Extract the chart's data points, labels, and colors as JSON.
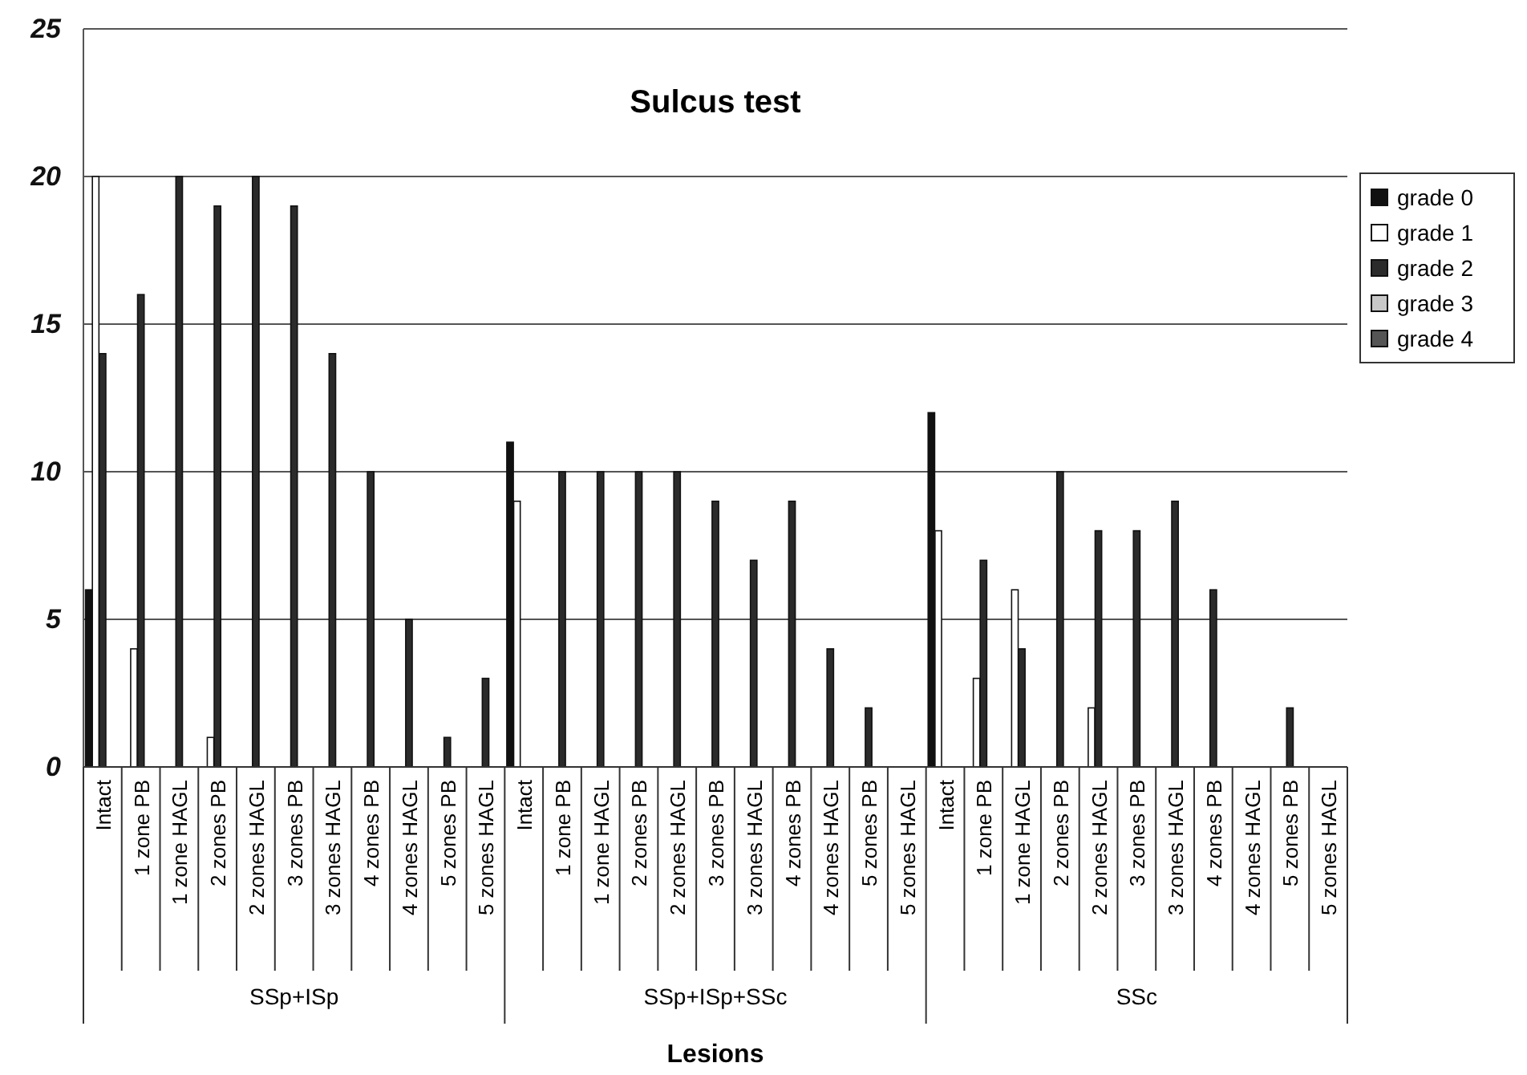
{
  "chart_data": {
    "type": "bar",
    "title": "Sulcus test",
    "xlabel": "Lesions",
    "categories": [
      "Intact",
      "1 zone PB",
      "1 zone HAGL",
      "2 zones PB",
      "2 zones HAGL",
      "3 zones PB",
      "3 zones HAGL",
      "4 zones PB",
      "4 zones HAGL",
      "5 zones PB",
      "5 zones HAGL",
      "Intact",
      "1 zone PB",
      "1 zone HAGL",
      "2 zones PB",
      "2 zones HAGL",
      "3 zones PB",
      "3 zones HAGL",
      "4 zones PB",
      "4 zones HAGL",
      "5 zones PB",
      "5 zones HAGL",
      "Intact",
      "1 zone PB",
      "1 zone HAGL",
      "2 zones PB",
      "2 zones HAGL",
      "3 zones PB",
      "3 zones HAGL",
      "4 zones PB",
      "4 zones HAGL",
      "5 zones PB",
      "5 zones HAGL"
    ],
    "series": [
      {
        "name": "grade 0",
        "color": "#111111",
        "values": [
          6,
          0,
          0,
          0,
          0,
          0,
          0,
          0,
          0,
          0,
          0,
          11,
          0,
          0,
          0,
          0,
          0,
          0,
          0,
          0,
          0,
          0,
          12,
          0,
          0,
          0,
          0,
          0,
          0,
          0,
          0,
          0,
          0
        ]
      },
      {
        "name": "grade 1",
        "color": "#ffffff",
        "values": [
          20,
          4,
          0,
          1,
          0,
          0,
          0,
          0,
          0,
          0,
          0,
          9,
          0,
          0,
          0,
          0,
          0,
          0,
          0,
          0,
          0,
          0,
          8,
          3,
          6,
          0,
          2,
          0,
          0,
          0,
          0,
          0,
          0
        ]
      },
      {
        "name": "grade 2",
        "color": "#2b2b2b",
        "values": [
          14,
          16,
          20,
          19,
          20,
          19,
          14,
          10,
          5,
          1,
          3,
          0,
          10,
          10,
          10,
          10,
          9,
          7,
          9,
          4,
          2,
          0,
          0,
          7,
          4,
          10,
          8,
          8,
          9,
          6,
          0,
          2,
          0
        ]
      },
      {
        "name": "grade 3",
        "color": "#c8c8c8",
        "values": [
          0,
          0,
          0,
          0,
          0,
          0,
          0,
          0,
          0,
          0,
          0,
          0,
          0,
          0,
          0,
          0,
          0,
          0,
          0,
          0,
          0,
          0,
          0,
          0,
          0,
          0,
          0,
          0,
          0,
          0,
          0,
          0,
          0
        ]
      },
      {
        "name": "grade 4",
        "color": "#555555",
        "values": [
          0,
          0,
          0,
          0,
          0,
          0,
          0,
          0,
          0,
          0,
          0,
          0,
          0,
          0,
          0,
          0,
          0,
          0,
          0,
          0,
          0,
          0,
          0,
          0,
          0,
          0,
          0,
          0,
          0,
          0,
          0,
          0,
          0
        ]
      }
    ],
    "annotations": [
      "SSp+ISp",
      "SSp+ISp+SSc",
      "SSc"
    ],
    "ylim": [
      0,
      25
    ],
    "yticks": [
      0,
      5,
      10,
      15,
      20,
      25
    ],
    "grid": "y",
    "legend": "right"
  }
}
